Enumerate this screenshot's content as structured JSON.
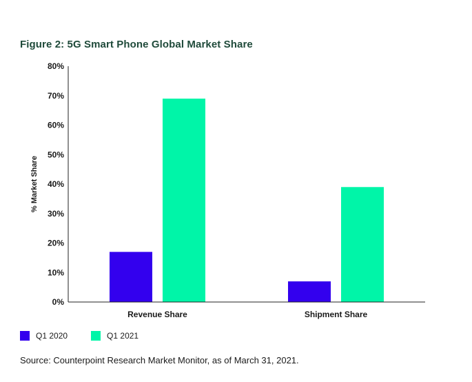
{
  "chart_data": {
    "type": "bar",
    "title": "Figure 2: 5G Smart Phone Global Market Share",
    "ylabel": "% Market Share",
    "xlabel": "",
    "categories": [
      "Revenue Share",
      "Shipment Share"
    ],
    "series": [
      {
        "name": "Q1 2020",
        "color": "#3300ee",
        "values": [
          17,
          7
        ]
      },
      {
        "name": "Q1 2021",
        "color": "#00f5a8",
        "values": [
          69,
          39
        ]
      }
    ],
    "ylim": [
      0,
      80
    ],
    "yticks": [
      "0%",
      "10%",
      "20%",
      "30%",
      "40%",
      "50%",
      "60%",
      "70%",
      "80%"
    ],
    "grid": false,
    "legend_position": "bottom-left"
  },
  "source": "Source: Counterpoint Research Market Monitor, as of March 31, 2021."
}
